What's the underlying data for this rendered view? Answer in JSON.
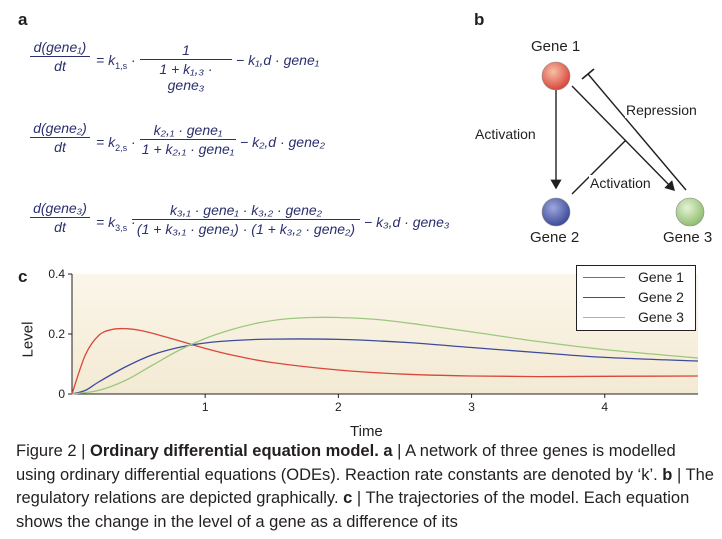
{
  "panels": {
    "a": "a",
    "b": "b",
    "c": "c"
  },
  "equations": {
    "eq1": {
      "lhs_num": "d(gene₁)",
      "lhs_den": "dt",
      "k_s": "= k",
      "k_s_sub": "1,s",
      "frac_num": "1",
      "frac_den": "1 + k₁,₃ · gene₃",
      "tail": "− k₁,d · gene₁"
    },
    "eq2": {
      "lhs_num": "d(gene₂)",
      "lhs_den": "dt",
      "k_s": "= k",
      "k_s_sub": "2,s",
      "frac_num": "k₂,₁ · gene₁",
      "frac_den": "1 + k₂,₁ · gene₁",
      "tail": "− k₂,d · gene₂"
    },
    "eq3": {
      "lhs_num": "d(gene₃)",
      "lhs_den": "dt",
      "k_s": "= k",
      "k_s_sub": "3,s",
      "frac_num": "k₃,₁ · gene₁ · k₃,₂ · gene₂",
      "frac_den": "(1 + k₃,₁ · gene₁) · (1 + k₃,₂ · gene₂)",
      "tail": "− k₃,d · gene₃"
    }
  },
  "network": {
    "nodes": [
      {
        "label": "Gene 1",
        "color": "#e0674f"
      },
      {
        "label": "Gene 2",
        "color": "#4b5aa6"
      },
      {
        "label": "Gene 3",
        "color": "#a9cf8c"
      }
    ],
    "edges": {
      "activation_left": "Activation",
      "repression": "Repression",
      "activation_mid": "Activation"
    }
  },
  "chart_data": {
    "type": "line",
    "xlabel": "Time",
    "ylabel": "Level",
    "xlim": [
      0,
      4.7
    ],
    "ylim": [
      0,
      0.4
    ],
    "xticks": [
      "1",
      "2",
      "3",
      "4"
    ],
    "yticks": [
      "0",
      "0.2",
      "0.4"
    ],
    "legend_position": "top-right",
    "series": [
      {
        "name": "Gene 1",
        "color": "#d9473b",
        "x": [
          0,
          0.1,
          0.2,
          0.3,
          0.4,
          0.5,
          0.6,
          0.8,
          1.0,
          1.2,
          1.5,
          2.0,
          2.5,
          3.0,
          3.5,
          4.0,
          4.7
        ],
        "y": [
          0,
          0.13,
          0.195,
          0.215,
          0.218,
          0.213,
          0.203,
          0.178,
          0.152,
          0.13,
          0.105,
          0.08,
          0.066,
          0.06,
          0.058,
          0.059,
          0.06
        ]
      },
      {
        "name": "Gene 2",
        "color": "#3d4b9a",
        "x": [
          0,
          0.1,
          0.2,
          0.4,
          0.6,
          0.8,
          1.0,
          1.2,
          1.5,
          2.0,
          2.5,
          3.0,
          3.5,
          4.0,
          4.7
        ],
        "y": [
          0,
          0.012,
          0.04,
          0.09,
          0.13,
          0.155,
          0.17,
          0.178,
          0.183,
          0.182,
          0.172,
          0.155,
          0.138,
          0.122,
          0.11
        ]
      },
      {
        "name": "Gene 3",
        "color": "#9cc77e",
        "x": [
          0,
          0.2,
          0.4,
          0.6,
          0.8,
          1.0,
          1.2,
          1.4,
          1.6,
          1.8,
          2.0,
          2.3,
          2.6,
          3.0,
          3.5,
          4.0,
          4.7
        ],
        "y": [
          0,
          0.012,
          0.045,
          0.095,
          0.145,
          0.185,
          0.215,
          0.237,
          0.25,
          0.255,
          0.255,
          0.248,
          0.232,
          0.207,
          0.175,
          0.148,
          0.12
        ]
      }
    ]
  },
  "caption": {
    "figure": "Figure 2 | ",
    "title": "Ordinary differential equation model.",
    "a_label": " a",
    "a_text": " | A network of three genes is modelled using ordinary differential equations (ODEs). Reaction rate constants are denoted by ‘k’. ",
    "b_label": "b",
    "b_text": " | The regulatory relations are depicted graphically. ",
    "c_label": "c",
    "c_text": " | The trajectories of the model. Each equation shows the change in the level of a gene as a difference of its"
  }
}
